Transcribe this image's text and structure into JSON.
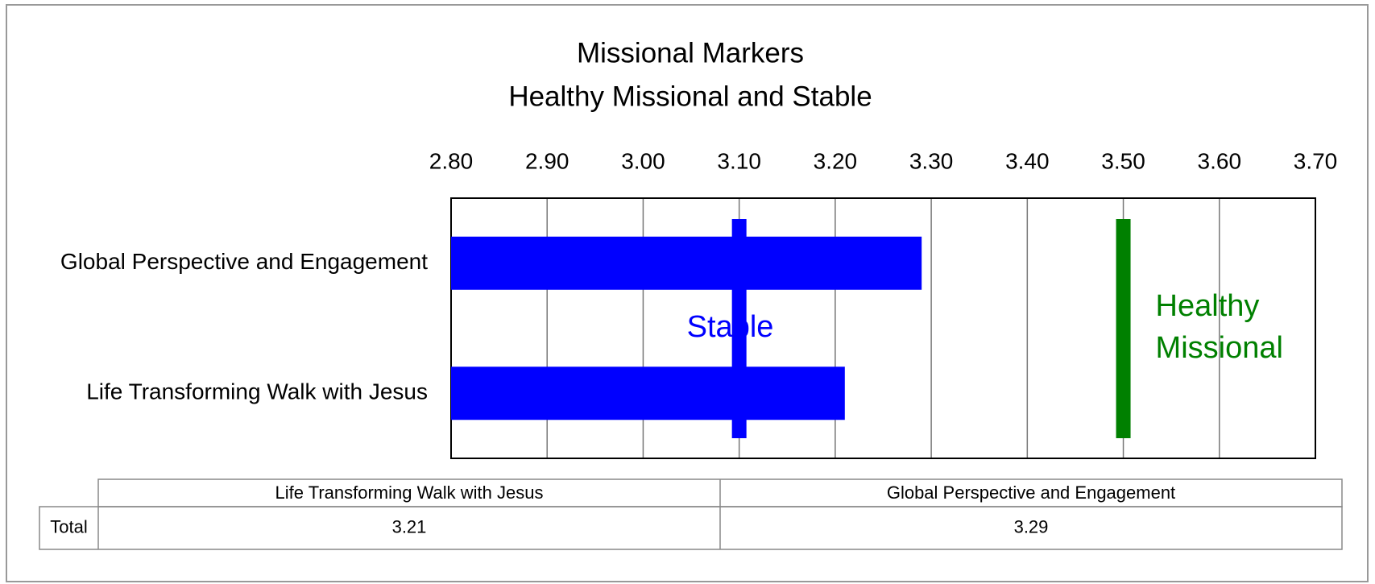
{
  "chart_data": {
    "type": "barh",
    "title": "Missional Markers",
    "subtitle": "Healthy Missional and Stable",
    "categories": [
      "Global Perspective and Engagement",
      "Life Transforming Walk with Jesus"
    ],
    "values": [
      3.29,
      3.21
    ],
    "color": "#0000ff",
    "xlim": [
      2.8,
      3.7
    ],
    "xticks": [
      {
        "value": 2.8,
        "label": "2.80"
      },
      {
        "value": 2.9,
        "label": "2.90"
      },
      {
        "value": 3.0,
        "label": "3.00"
      },
      {
        "value": 3.1,
        "label": "3.10"
      },
      {
        "value": 3.2,
        "label": "3.20"
      },
      {
        "value": 3.3,
        "label": "3.30"
      },
      {
        "value": 3.4,
        "label": "3.40"
      },
      {
        "value": 3.5,
        "label": "3.50"
      },
      {
        "value": 3.6,
        "label": "3.60"
      },
      {
        "value": 3.7,
        "label": "3.70"
      }
    ],
    "grid": true,
    "reference_lines": [
      {
        "value": 3.1,
        "color": "#0000ff",
        "label": [
          "Stable"
        ]
      },
      {
        "value": 3.5,
        "color": "#008000",
        "label": [
          "Healthy",
          "Missional"
        ]
      }
    ],
    "data_table": {
      "columns": [
        "Life Transforming Walk with Jesus",
        "Global Perspective and Engagement"
      ],
      "rows": [
        {
          "label": "Total",
          "cells": [
            "3.21",
            "3.29"
          ]
        }
      ]
    }
  }
}
